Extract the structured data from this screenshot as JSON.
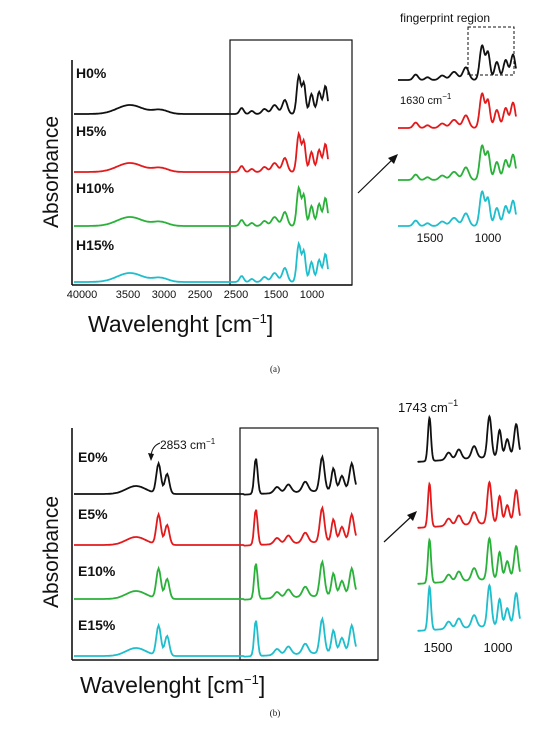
{
  "colors": {
    "black": "#111111",
    "red": "#e31a1c",
    "green": "#2ab13a",
    "cyan": "#1fbecc"
  },
  "chart_data": [
    {
      "type": "line",
      "panel_caption": "(a)",
      "xlabel": "Wavelenght [cm",
      "xlabel_sup": "−1",
      "xlabel_close": "]",
      "ylabel": "Absorbance",
      "x_ticks": [
        "40000",
        "3500",
        "3000",
        "2500",
        "2500",
        "1500",
        "1000"
      ],
      "series": [
        {
          "name": "H0%",
          "color": "#111111"
        },
        {
          "name": "H5%",
          "color": "#e31a1c"
        },
        {
          "name": "H10%",
          "color": "#2ab13a"
        },
        {
          "name": "H15%",
          "color": "#1fbecc"
        }
      ],
      "inset": {
        "title": "fingerprint region",
        "annotation": "1630 cm",
        "annotation_sup": "−1",
        "x_ticks": [
          "1500",
          "1000"
        ]
      }
    },
    {
      "type": "line",
      "panel_caption": "(b)",
      "xlabel": "Wavelenght [cm",
      "xlabel_sup": "−1",
      "xlabel_close": "]",
      "ylabel": "Absorbance",
      "annotation": "2853 cm",
      "annotation_sup": "−1",
      "series": [
        {
          "name": "E0%",
          "color": "#111111"
        },
        {
          "name": "E5%",
          "color": "#e31a1c"
        },
        {
          "name": "E10%",
          "color": "#2ab13a"
        },
        {
          "name": "E15%",
          "color": "#1fbecc"
        }
      ],
      "inset": {
        "annotation": "1743 cm",
        "annotation_sup": "−1",
        "x_ticks": [
          "1500",
          "1000"
        ]
      }
    }
  ]
}
